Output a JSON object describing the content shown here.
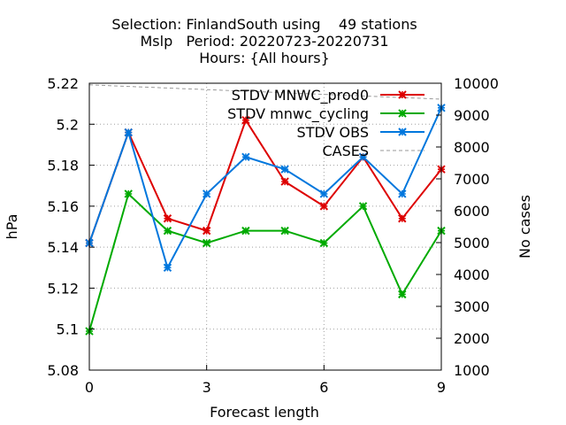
{
  "chart_data": {
    "type": "line",
    "title": [
      "Selection: FinlandSouth using    49 stations",
      "Mslp   Period: 20220723-20220731",
      "Hours: {All hours}"
    ],
    "xlabel": "Forecast length",
    "ylabel": "hPa",
    "y2label": "No cases",
    "xlim": [
      0,
      9
    ],
    "ylim": [
      5.08,
      5.22
    ],
    "y2lim": [
      1000,
      10000
    ],
    "x_ticks": [
      0,
      3,
      6,
      9
    ],
    "y_ticks": [
      5.08,
      5.1,
      5.12,
      5.14,
      5.16,
      5.18,
      5.2,
      5.22
    ],
    "y_tick_labels": [
      "5.08",
      "5.1",
      "5.12",
      "5.14",
      "5.16",
      "5.18",
      "5.2",
      "5.22"
    ],
    "y2_ticks": [
      1000,
      2000,
      3000,
      4000,
      5000,
      6000,
      7000,
      8000,
      9000,
      10000
    ],
    "grid": true,
    "legend_position": "top-right",
    "x": [
      0,
      1,
      2,
      3,
      4,
      5,
      6,
      7,
      8,
      9
    ],
    "series": [
      {
        "name": "STDV MNWC_prod0",
        "color": "#dd0000",
        "axis": "left",
        "marker": "x",
        "values": [
          5.142,
          5.196,
          5.154,
          5.148,
          5.202,
          5.172,
          5.16,
          5.184,
          5.154,
          5.178
        ]
      },
      {
        "name": "STDV mnwc_cycling",
        "color": "#00aa00",
        "axis": "left",
        "marker": "x",
        "values": [
          5.099,
          5.166,
          5.148,
          5.142,
          5.148,
          5.148,
          5.142,
          5.16,
          5.117,
          5.148
        ]
      },
      {
        "name": "STDV OBS",
        "color": "#0077dd",
        "axis": "left",
        "marker": "x",
        "values": [
          5.142,
          5.196,
          5.13,
          5.166,
          5.184,
          5.178,
          5.166,
          5.184,
          5.166,
          5.208
        ]
      },
      {
        "name": "CASES",
        "color": "#999999",
        "axis": "right",
        "marker": "none",
        "dashed": true,
        "values": [
          9950,
          9900,
          9850,
          9800,
          9750,
          9700,
          9650,
          9600,
          9550,
          9500
        ]
      }
    ]
  }
}
